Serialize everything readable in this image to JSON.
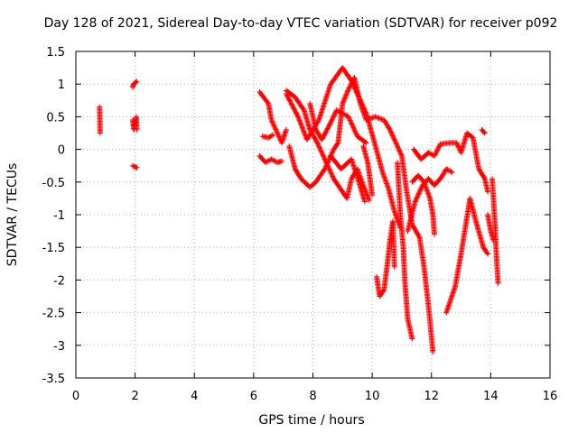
{
  "chart_data": {
    "type": "scatter",
    "title": "Day 128 of 2021, Sidereal Day-to-day VTEC variation (SDTVAR) for receiver p092",
    "xlabel": "GPS time / hours",
    "ylabel": "SDTVAR / TECUs",
    "xlim": [
      0,
      16
    ],
    "ylim": [
      -3.5,
      1.5
    ],
    "xticks": [
      "0",
      "2",
      "4",
      "6",
      "8",
      "10",
      "12",
      "14",
      "16"
    ],
    "yticks": [
      "1.5",
      "1",
      "0.5",
      "0",
      "-0.5",
      "-1",
      "-1.5",
      "-2",
      "-2.5",
      "-3",
      "-3.5"
    ],
    "grid": true,
    "marker": "+",
    "color": "#ff0000",
    "segments": [
      [
        [
          0.8,
          0.65
        ],
        [
          0.82,
          0.25
        ]
      ],
      [
        [
          1.92,
          0.95
        ],
        [
          1.95,
          1.0
        ],
        [
          2.0,
          1.02
        ],
        [
          2.05,
          1.04
        ]
      ],
      [
        [
          1.92,
          0.45
        ],
        [
          1.96,
          0.3
        ],
        [
          2.0,
          0.4
        ],
        [
          2.04,
          0.5
        ],
        [
          2.06,
          0.3
        ]
      ],
      [
        [
          1.92,
          -0.25
        ],
        [
          2.0,
          -0.27
        ],
        [
          2.06,
          -0.28
        ]
      ],
      [
        [
          6.2,
          0.88
        ],
        [
          6.5,
          0.7
        ],
        [
          6.6,
          0.45
        ],
        [
          6.8,
          0.25
        ],
        [
          6.95,
          0.1
        ],
        [
          7.1,
          0.3
        ]
      ],
      [
        [
          6.3,
          0.2
        ],
        [
          6.5,
          0.18
        ],
        [
          6.65,
          0.22
        ]
      ],
      [
        [
          6.2,
          -0.1
        ],
        [
          6.4,
          -0.2
        ],
        [
          6.6,
          -0.15
        ],
        [
          6.8,
          -0.2
        ],
        [
          6.95,
          -0.18
        ]
      ],
      [
        [
          7.1,
          0.9
        ],
        [
          7.4,
          0.8
        ],
        [
          7.7,
          0.6
        ],
        [
          7.9,
          0.3
        ],
        [
          8.15,
          0.1
        ],
        [
          8.4,
          -0.15
        ],
        [
          8.7,
          -0.45
        ],
        [
          9.0,
          -0.65
        ],
        [
          9.15,
          -0.75
        ],
        [
          9.3,
          -0.45
        ],
        [
          9.5,
          -0.3
        ],
        [
          9.7,
          -0.55
        ],
        [
          9.9,
          -0.78
        ]
      ],
      [
        [
          7.1,
          0.85
        ],
        [
          7.5,
          0.5
        ],
        [
          7.8,
          0.15
        ],
        [
          8.2,
          0.45
        ],
        [
          8.6,
          1.0
        ],
        [
          9.0,
          1.25
        ],
        [
          9.3,
          1.05
        ],
        [
          9.55,
          0.8
        ],
        [
          9.8,
          0.55
        ],
        [
          10.05,
          0.15
        ],
        [
          10.35,
          -0.35
        ],
        [
          10.55,
          -0.6
        ],
        [
          10.75,
          -0.95
        ],
        [
          10.95,
          -1.2
        ]
      ],
      [
        [
          7.2,
          0.05
        ],
        [
          7.4,
          -0.3
        ],
        [
          7.6,
          -0.45
        ],
        [
          7.9,
          -0.58
        ],
        [
          8.1,
          -0.5
        ],
        [
          8.4,
          -0.3
        ],
        [
          8.7,
          0.0
        ],
        [
          8.85,
          0.1
        ],
        [
          9.0,
          0.7
        ],
        [
          9.2,
          0.92
        ],
        [
          9.4,
          1.1
        ],
        [
          9.6,
          0.7
        ],
        [
          9.8,
          0.45
        ],
        [
          10.1,
          0.5
        ],
        [
          10.4,
          0.45
        ],
        [
          10.6,
          0.3
        ],
        [
          10.8,
          0.1
        ],
        [
          11.0,
          -0.1
        ],
        [
          11.15,
          -0.6
        ],
        [
          11.35,
          -1.15
        ],
        [
          11.6,
          -1.35
        ],
        [
          11.75,
          -1.8
        ],
        [
          11.9,
          -2.4
        ],
        [
          12.05,
          -3.1
        ]
      ],
      [
        [
          7.9,
          0.7
        ],
        [
          8.1,
          0.3
        ],
        [
          8.3,
          0.15
        ],
        [
          8.5,
          0.32
        ],
        [
          8.8,
          0.6
        ],
        [
          9.2,
          0.5
        ],
        [
          9.5,
          0.2
        ],
        [
          9.8,
          0.1
        ]
      ],
      [
        [
          8.6,
          -0.1
        ],
        [
          8.95,
          -0.3
        ],
        [
          9.3,
          -0.15
        ],
        [
          9.55,
          -0.5
        ],
        [
          9.75,
          -0.8
        ]
      ],
      [
        [
          9.7,
          0.05
        ],
        [
          9.85,
          -0.2
        ],
        [
          10.0,
          -0.7
        ]
      ],
      [
        [
          10.15,
          -1.95
        ],
        [
          10.25,
          -2.25
        ],
        [
          10.4,
          -2.15
        ],
        [
          10.5,
          -1.8
        ],
        [
          10.6,
          -1.4
        ],
        [
          10.7,
          -1.1
        ],
        [
          10.75,
          -1.8
        ]
      ],
      [
        [
          10.85,
          -0.2
        ],
        [
          10.95,
          -1.0
        ],
        [
          11.05,
          -1.5
        ],
        [
          11.1,
          -2.0
        ],
        [
          11.2,
          -2.6
        ],
        [
          11.35,
          -2.9
        ]
      ],
      [
        [
          11.2,
          -1.25
        ],
        [
          11.45,
          -0.8
        ],
        [
          11.7,
          -0.55
        ],
        [
          11.9,
          -0.45
        ],
        [
          12.1,
          -0.55
        ],
        [
          12.35,
          -0.42
        ],
        [
          12.5,
          -0.3
        ],
        [
          12.7,
          -0.35
        ]
      ],
      [
        [
          11.35,
          -0.5
        ],
        [
          11.55,
          -0.4
        ],
        [
          11.75,
          -0.5
        ],
        [
          11.95,
          -0.75
        ],
        [
          12.05,
          -1.0
        ],
        [
          12.1,
          -1.3
        ]
      ],
      [
        [
          11.4,
          0.0
        ],
        [
          11.65,
          -0.15
        ],
        [
          11.9,
          -0.05
        ],
        [
          12.1,
          -0.1
        ],
        [
          12.3,
          0.08
        ],
        [
          12.6,
          0.1
        ],
        [
          12.85,
          0.1
        ],
        [
          13.0,
          -0.05
        ],
        [
          13.2,
          0.25
        ],
        [
          13.4,
          0.18
        ],
        [
          13.6,
          -0.3
        ],
        [
          13.8,
          -0.45
        ],
        [
          13.9,
          -0.65
        ]
      ],
      [
        [
          12.5,
          -2.5
        ],
        [
          12.8,
          -2.1
        ],
        [
          13.0,
          -1.6
        ],
        [
          13.3,
          -0.75
        ],
        [
          13.5,
          -1.1
        ],
        [
          13.75,
          -1.5
        ],
        [
          13.9,
          -1.6
        ]
      ],
      [
        [
          13.7,
          0.3
        ],
        [
          13.8,
          0.25
        ]
      ],
      [
        [
          13.9,
          -1.0
        ],
        [
          14.0,
          -1.25
        ],
        [
          14.1,
          -1.4
        ]
      ],
      [
        [
          14.05,
          -0.45
        ],
        [
          14.1,
          -0.8
        ],
        [
          14.15,
          -1.2
        ],
        [
          14.2,
          -1.7
        ],
        [
          14.25,
          -2.05
        ]
      ]
    ]
  }
}
